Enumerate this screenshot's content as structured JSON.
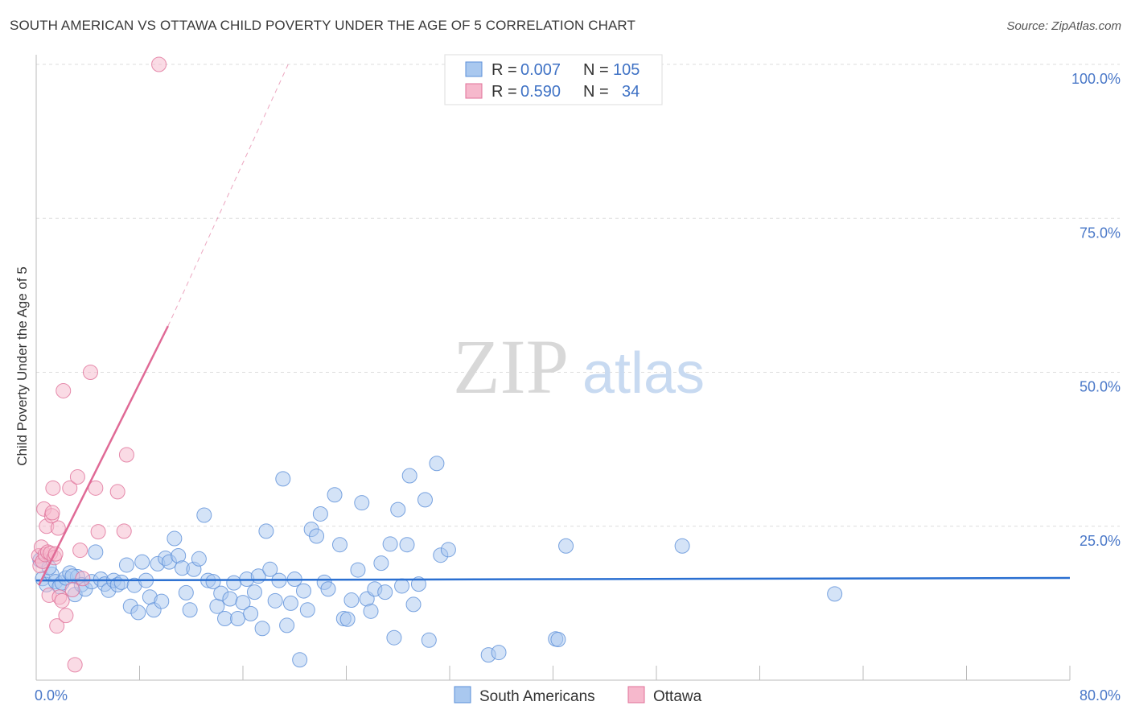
{
  "title": "SOUTH AMERICAN VS OTTAWA CHILD POVERTY UNDER THE AGE OF 5 CORRELATION CHART",
  "source": "Source: ZipAtlas.com",
  "watermark": {
    "zip": "ZIP",
    "atlas": "atlas"
  },
  "colors": {
    "blue_fill": "#a9c8ef",
    "blue_stroke": "#5b8fd8",
    "blue_line": "#2a6fd1",
    "pink_fill": "#f6b8cc",
    "pink_stroke": "#e07098",
    "pink_line": "#e06a96",
    "grid": "#dddddd",
    "tick_text": "#4a78c8"
  },
  "legend": {
    "rows": [
      {
        "r_label": "R =",
        "r_value": "0.007",
        "n_label": "N =",
        "n_value": "105"
      },
      {
        "r_label": "R =",
        "r_value": "0.590",
        "n_label": "N =",
        "n_value": "34"
      }
    ]
  },
  "chart_data": {
    "type": "scatter",
    "title": "SOUTH AMERICAN VS OTTAWA CHILD POVERTY UNDER THE AGE OF 5 CORRELATION CHART",
    "xlabel": "",
    "ylabel": "Child Poverty Under the Age of 5",
    "xlim": [
      0,
      80
    ],
    "ylim": [
      0,
      100
    ],
    "x_tick_labels": [
      "0.0%",
      "80.0%"
    ],
    "y_ticks": [
      25,
      50,
      75,
      100
    ],
    "y_tick_labels": [
      "25.0%",
      "50.0%",
      "75.0%",
      "100.0%"
    ],
    "grid": true,
    "legend_position": "top-center",
    "series": [
      {
        "name": "South Americans",
        "r": 0.007,
        "n": 105,
        "trend": {
          "x": [
            0,
            80
          ],
          "y": [
            16.2,
            16.6
          ]
        },
        "points": [
          [
            0.5,
            16.5
          ],
          [
            0.8,
            15.5
          ],
          [
            1.2,
            17.2
          ],
          [
            1.5,
            16.0
          ],
          [
            1.8,
            15.2
          ],
          [
            2.0,
            15.8
          ],
          [
            2.3,
            16.6
          ],
          [
            2.6,
            17.4
          ],
          [
            3.0,
            13.9
          ],
          [
            3.2,
            16.8
          ],
          [
            3.5,
            15.5
          ],
          [
            3.8,
            14.8
          ],
          [
            4.3,
            16.0
          ],
          [
            4.6,
            20.8
          ],
          [
            5.0,
            16.4
          ],
          [
            5.3,
            15.6
          ],
          [
            5.6,
            14.6
          ],
          [
            6.0,
            16.2
          ],
          [
            6.3,
            15.5
          ],
          [
            6.6,
            15.9
          ],
          [
            7.0,
            18.7
          ],
          [
            7.3,
            12.0
          ],
          [
            7.6,
            15.4
          ],
          [
            7.9,
            11.0
          ],
          [
            8.2,
            19.2
          ],
          [
            8.5,
            16.2
          ],
          [
            8.8,
            13.5
          ],
          [
            9.1,
            11.4
          ],
          [
            9.4,
            18.9
          ],
          [
            9.7,
            12.8
          ],
          [
            10.0,
            19.8
          ],
          [
            10.3,
            19.2
          ],
          [
            10.7,
            23.0
          ],
          [
            11.0,
            20.2
          ],
          [
            11.3,
            18.2
          ],
          [
            11.6,
            14.2
          ],
          [
            11.9,
            11.4
          ],
          [
            12.2,
            18.0
          ],
          [
            12.6,
            19.7
          ],
          [
            13.0,
            26.8
          ],
          [
            13.3,
            16.2
          ],
          [
            13.7,
            16.0
          ],
          [
            14.0,
            12.0
          ],
          [
            14.3,
            14.1
          ],
          [
            14.6,
            10.0
          ],
          [
            15.0,
            13.2
          ],
          [
            15.3,
            15.8
          ],
          [
            15.6,
            10.0
          ],
          [
            16.0,
            12.6
          ],
          [
            16.3,
            16.4
          ],
          [
            16.6,
            10.8
          ],
          [
            16.9,
            14.3
          ],
          [
            17.2,
            16.9
          ],
          [
            17.5,
            8.4
          ],
          [
            17.8,
            24.2
          ],
          [
            18.1,
            18.0
          ],
          [
            18.5,
            12.9
          ],
          [
            18.8,
            16.2
          ],
          [
            19.1,
            32.7
          ],
          [
            19.4,
            8.9
          ],
          [
            19.7,
            12.5
          ],
          [
            20.0,
            16.4
          ],
          [
            20.4,
            3.3
          ],
          [
            20.7,
            14.5
          ],
          [
            21.0,
            11.4
          ],
          [
            21.3,
            24.5
          ],
          [
            21.7,
            23.4
          ],
          [
            22.0,
            27.0
          ],
          [
            22.3,
            15.9
          ],
          [
            22.6,
            14.8
          ],
          [
            23.1,
            30.1
          ],
          [
            23.5,
            22.0
          ],
          [
            23.8,
            10.0
          ],
          [
            24.1,
            9.9
          ],
          [
            24.4,
            13.0
          ],
          [
            24.9,
            17.9
          ],
          [
            25.2,
            28.8
          ],
          [
            25.6,
            13.2
          ],
          [
            25.9,
            11.2
          ],
          [
            26.2,
            14.8
          ],
          [
            26.7,
            19.0
          ],
          [
            27.0,
            14.3
          ],
          [
            27.4,
            22.1
          ],
          [
            27.7,
            6.9
          ],
          [
            28.0,
            27.7
          ],
          [
            28.3,
            15.3
          ],
          [
            28.7,
            22.0
          ],
          [
            28.9,
            33.2
          ],
          [
            29.2,
            12.3
          ],
          [
            29.6,
            15.6
          ],
          [
            30.1,
            29.3
          ],
          [
            30.4,
            6.5
          ],
          [
            31.0,
            35.2
          ],
          [
            31.3,
            20.3
          ],
          [
            31.9,
            21.2
          ],
          [
            35.0,
            4.1
          ],
          [
            35.8,
            4.5
          ],
          [
            40.2,
            6.7
          ],
          [
            40.4,
            6.6
          ],
          [
            41.0,
            21.8
          ],
          [
            50.0,
            21.8
          ],
          [
            61.8,
            14.0
          ],
          [
            0.3,
            19.5
          ],
          [
            1.0,
            18.3
          ],
          [
            2.8,
            16.9
          ]
        ]
      },
      {
        "name": "Ottawa",
        "r": 0.59,
        "n": 34,
        "trend": {
          "x": [
            0.2,
            10.2
          ],
          "y": [
            15.4,
            57.5
          ]
        },
        "trend_dashed": {
          "x": [
            10.2,
            19.5
          ],
          "y": [
            57.5,
            100
          ]
        },
        "points": [
          [
            0.2,
            20.2
          ],
          [
            0.3,
            18.6
          ],
          [
            0.4,
            21.6
          ],
          [
            0.5,
            19.3
          ],
          [
            0.6,
            27.8
          ],
          [
            0.7,
            20.4
          ],
          [
            0.8,
            25.0
          ],
          [
            0.9,
            20.8
          ],
          [
            1.0,
            13.8
          ],
          [
            1.1,
            20.6
          ],
          [
            1.2,
            26.7
          ],
          [
            1.3,
            31.2
          ],
          [
            1.4,
            19.9
          ],
          [
            1.5,
            20.5
          ],
          [
            1.6,
            8.8
          ],
          [
            1.7,
            24.7
          ],
          [
            1.8,
            13.5
          ],
          [
            2.0,
            12.9
          ],
          [
            2.1,
            47.0
          ],
          [
            2.3,
            10.5
          ],
          [
            2.6,
            31.2
          ],
          [
            2.8,
            14.7
          ],
          [
            3.0,
            2.5
          ],
          [
            3.2,
            33.0
          ],
          [
            3.4,
            21.1
          ],
          [
            3.6,
            16.5
          ],
          [
            4.2,
            50.0
          ],
          [
            4.6,
            31.2
          ],
          [
            4.8,
            24.1
          ],
          [
            6.3,
            30.6
          ],
          [
            6.8,
            24.2
          ],
          [
            7.0,
            36.6
          ],
          [
            9.5,
            100.0
          ],
          [
            1.25,
            27.2
          ]
        ]
      }
    ]
  },
  "bottom_legend": [
    {
      "label": "South Americans"
    },
    {
      "label": "Ottawa"
    }
  ]
}
